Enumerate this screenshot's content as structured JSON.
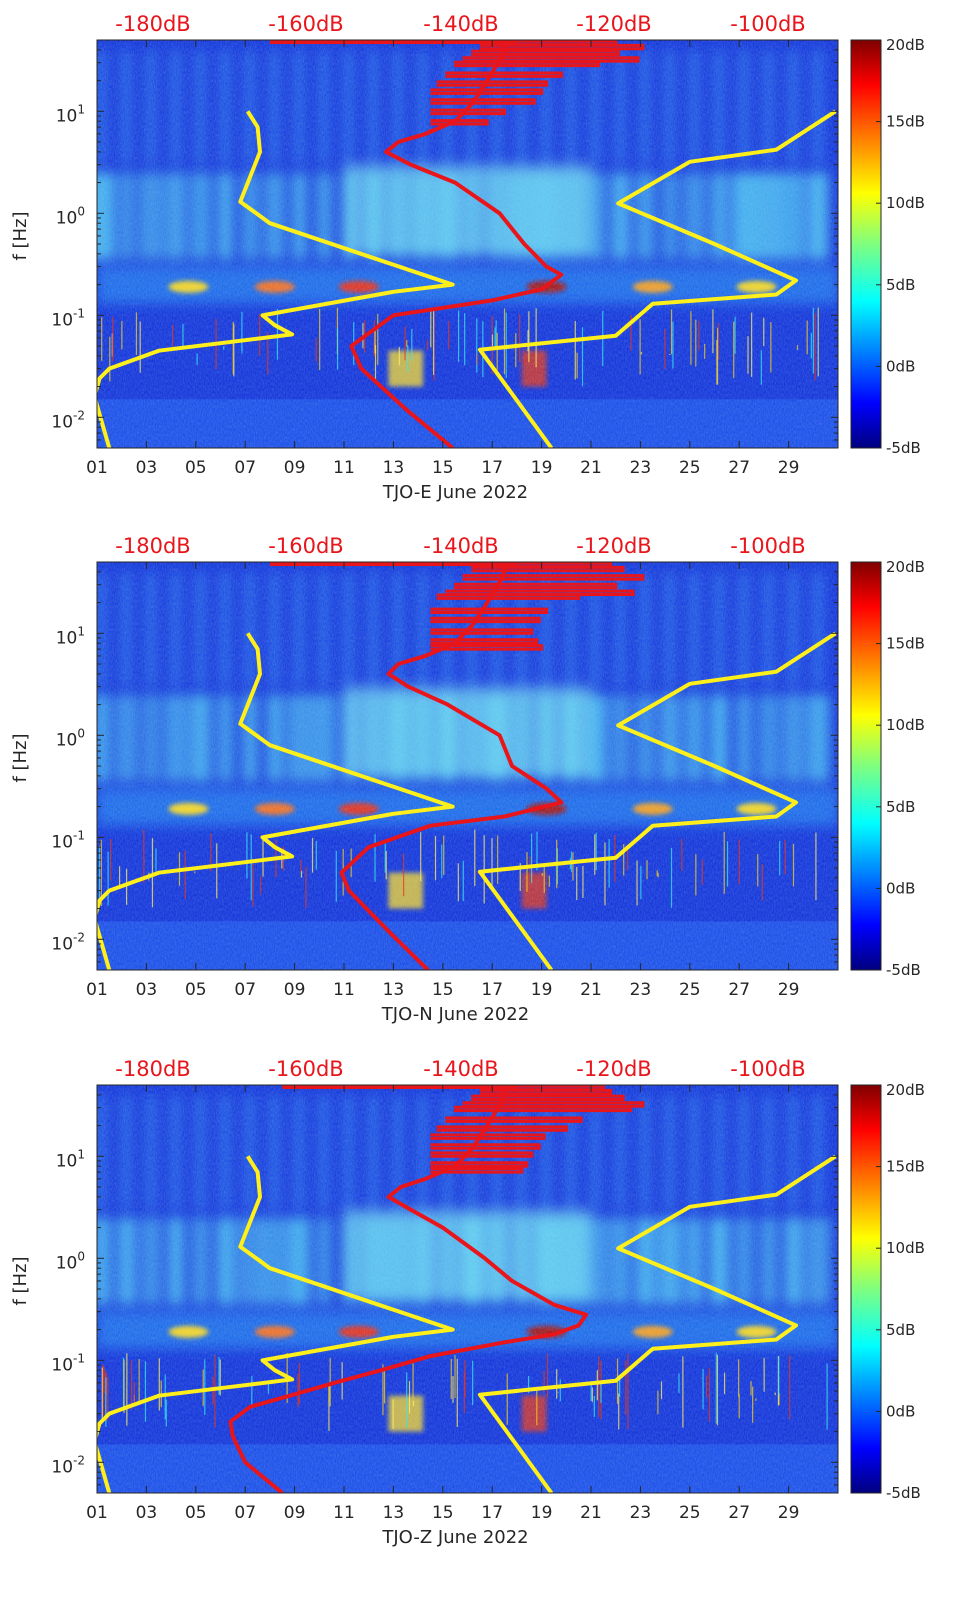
{
  "chart_data": [
    {
      "type": "heatmap",
      "xlabel": "TJO-E June 2022",
      "ylabel": "f [Hz]",
      "x_tick_labels": [
        "01",
        "03",
        "05",
        "07",
        "09",
        "11",
        "13",
        "15",
        "17",
        "19",
        "21",
        "23",
        "25",
        "27",
        "29"
      ],
      "x_ticks_day": [
        1,
        3,
        5,
        7,
        9,
        11,
        13,
        15,
        17,
        19,
        21,
        23,
        25,
        27,
        29
      ],
      "xlim_day": [
        1,
        31
      ],
      "y_scale": "log",
      "ylim_hz": [
        0.005,
        50
      ],
      "y_ticks_hz": [
        0.01,
        0.1,
        1,
        10
      ],
      "y_tick_base": "10",
      "y_tick_exps": [
        "-2",
        "-1",
        "0",
        "1"
      ],
      "colorbar": {
        "colormap": "jet",
        "range_db": [
          -5,
          20
        ],
        "tick_labels": [
          "20dB",
          "15dB",
          "10dB",
          "5dB",
          "0dB",
          "-5dB"
        ],
        "tick_values": [
          20,
          15,
          10,
          5,
          0,
          -5
        ]
      },
      "top_axis": {
        "tick_labels": [
          "-180dB",
          "-160dB",
          "-140dB",
          "-120dB",
          "-100dB"
        ],
        "tick_values_db": [
          -180,
          -160,
          -140,
          -120,
          -100
        ],
        "color": "#e8151b"
      },
      "series": [
        {
          "color": "#ffef1a",
          "curves": [
            {
              "points_day_hz": [
                [
                  7.1,
                  10
                ],
                [
                  7.5,
                  7
                ],
                [
                  7.6,
                  4
                ],
                [
                  6.8,
                  1.3
                ],
                [
                  8,
                  0.8
                ],
                [
                  15.4,
                  0.2
                ],
                [
                  13,
                  0.17
                ],
                [
                  7.7,
                  0.1
                ],
                [
                  8.2,
                  0.08
                ],
                [
                  8.9,
                  0.065
                ],
                [
                  3.5,
                  0.045
                ],
                [
                  1.5,
                  0.03
                ],
                [
                  1.1,
                  0.024
                ],
                [
                  0.9,
                  0.016
                ],
                [
                  1.5,
                  0.005
                ]
              ]
            },
            {
              "points_day_hz": [
                [
                  19.4,
                  0.005
                ],
                [
                  16.5,
                  0.046
                ],
                [
                  22,
                  0.063
                ],
                [
                  23.5,
                  0.13
                ],
                [
                  28.5,
                  0.16
                ],
                [
                  29.3,
                  0.22
                ],
                [
                  26,
                  0.5
                ],
                [
                  22.1,
                  1.25
                ],
                [
                  25,
                  3.2
                ],
                [
                  28.5,
                  4.2
                ],
                [
                  30.9,
                  10
                ]
              ]
            }
          ]
        },
        {
          "color": "#e8151b",
          "points_day_hz": [
            [
              15.4,
              0.005
            ],
            [
              13.5,
              0.012
            ],
            [
              11.7,
              0.03
            ],
            [
              11.3,
              0.05
            ],
            [
              13,
              0.1
            ],
            [
              17,
              0.14
            ],
            [
              19,
              0.18
            ],
            [
              19.8,
              0.25
            ],
            [
              19.2,
              0.3
            ],
            [
              18.3,
              0.5
            ],
            [
              17.3,
              1
            ],
            [
              15.5,
              2
            ],
            [
              13.7,
              3
            ],
            [
              12.7,
              4
            ],
            [
              13.2,
              5
            ],
            [
              14.3,
              6
            ],
            [
              15.5,
              8
            ],
            [
              16.2,
              12
            ],
            [
              16.8,
              20
            ],
            [
              17.4,
              35
            ],
            [
              17.6,
              50
            ]
          ],
          "spikes_day_hz": [
            [
              14.5,
              6.2
            ],
            [
              16.8,
              7.5
            ],
            [
              17.5,
              9.5
            ],
            [
              18.7,
              12
            ],
            [
              19,
              15
            ],
            [
              19.2,
              18
            ],
            [
              19.8,
              22
            ],
            [
              21.3,
              28
            ],
            [
              22.9,
              31
            ],
            [
              22.1,
              36
            ],
            [
              23.1,
              41
            ],
            [
              22,
              45
            ]
          ],
          "top_trace_day": [
            8,
            18
          ]
        }
      ]
    },
    {
      "type": "heatmap",
      "xlabel": "TJO-N June 2022",
      "ylabel": "f [Hz]",
      "x_tick_labels": [
        "01",
        "03",
        "05",
        "07",
        "09",
        "11",
        "13",
        "15",
        "17",
        "19",
        "21",
        "23",
        "25",
        "27",
        "29"
      ],
      "x_ticks_day": [
        1,
        3,
        5,
        7,
        9,
        11,
        13,
        15,
        17,
        19,
        21,
        23,
        25,
        27,
        29
      ],
      "xlim_day": [
        1,
        31
      ],
      "y_scale": "log",
      "ylim_hz": [
        0.005,
        50
      ],
      "y_ticks_hz": [
        0.01,
        0.1,
        1,
        10
      ],
      "y_tick_base": "10",
      "y_tick_exps": [
        "-2",
        "-1",
        "0",
        "1"
      ],
      "colorbar": {
        "colormap": "jet",
        "range_db": [
          -5,
          20
        ],
        "tick_labels": [
          "20dB",
          "15dB",
          "10dB",
          "5dB",
          "0dB",
          "-5dB"
        ],
        "tick_values": [
          20,
          15,
          10,
          5,
          0,
          -5
        ]
      },
      "top_axis": {
        "tick_labels": [
          "-180dB",
          "-160dB",
          "-140dB",
          "-120dB",
          "-100dB"
        ],
        "tick_values_db": [
          -180,
          -160,
          -140,
          -120,
          -100
        ],
        "color": "#e8151b"
      },
      "series": [
        {
          "color": "#ffef1a",
          "curves": [
            {
              "points_day_hz": [
                [
                  7.1,
                  10
                ],
                [
                  7.5,
                  7
                ],
                [
                  7.6,
                  4
                ],
                [
                  6.8,
                  1.3
                ],
                [
                  8,
                  0.8
                ],
                [
                  15.4,
                  0.2
                ],
                [
                  13,
                  0.17
                ],
                [
                  7.7,
                  0.1
                ],
                [
                  8.2,
                  0.08
                ],
                [
                  8.9,
                  0.065
                ],
                [
                  3.5,
                  0.045
                ],
                [
                  1.5,
                  0.03
                ],
                [
                  1.1,
                  0.024
                ],
                [
                  0.9,
                  0.016
                ],
                [
                  1.5,
                  0.005
                ]
              ]
            },
            {
              "points_day_hz": [
                [
                  19.4,
                  0.005
                ],
                [
                  16.5,
                  0.046
                ],
                [
                  22,
                  0.063
                ],
                [
                  23.5,
                  0.13
                ],
                [
                  28.5,
                  0.16
                ],
                [
                  29.3,
                  0.22
                ],
                [
                  26,
                  0.5
                ],
                [
                  22.1,
                  1.25
                ],
                [
                  25,
                  3.2
                ],
                [
                  28.5,
                  4.2
                ],
                [
                  30.9,
                  10
                ]
              ]
            }
          ]
        },
        {
          "color": "#e8151b",
          "points_day_hz": [
            [
              14.4,
              0.005
            ],
            [
              12.8,
              0.012
            ],
            [
              11.2,
              0.03
            ],
            [
              10.9,
              0.045
            ],
            [
              12,
              0.08
            ],
            [
              14.5,
              0.13
            ],
            [
              17.5,
              0.16
            ],
            [
              19.8,
              0.22
            ],
            [
              19.2,
              0.3
            ],
            [
              17.8,
              0.5
            ],
            [
              17.3,
              1
            ],
            [
              15.2,
              2
            ],
            [
              13.6,
              3
            ],
            [
              12.8,
              4
            ],
            [
              13.2,
              5
            ],
            [
              14.3,
              6
            ],
            [
              15.5,
              8
            ],
            [
              16.2,
              12
            ],
            [
              16.8,
              20
            ],
            [
              17.4,
              35
            ],
            [
              17.6,
              50
            ]
          ],
          "spikes_day_hz": [
            [
              19,
              7
            ],
            [
              18.8,
              8
            ],
            [
              18.6,
              10
            ],
            [
              18.9,
              13
            ],
            [
              19.2,
              16
            ],
            [
              20.5,
              22
            ],
            [
              22.7,
              24
            ],
            [
              22,
              28
            ],
            [
              23.1,
              34
            ],
            [
              22.3,
              41
            ],
            [
              21.8,
              45
            ]
          ],
          "top_trace_day": [
            8,
            18
          ]
        }
      ]
    },
    {
      "type": "heatmap",
      "xlabel": "TJO-Z June 2022",
      "ylabel": "f [Hz]",
      "x_tick_labels": [
        "01",
        "03",
        "05",
        "07",
        "09",
        "11",
        "13",
        "15",
        "17",
        "19",
        "21",
        "23",
        "25",
        "27",
        "29"
      ],
      "x_ticks_day": [
        1,
        3,
        5,
        7,
        9,
        11,
        13,
        15,
        17,
        19,
        21,
        23,
        25,
        27,
        29
      ],
      "xlim_day": [
        1,
        31
      ],
      "y_scale": "log",
      "ylim_hz": [
        0.005,
        50
      ],
      "y_ticks_hz": [
        0.01,
        0.1,
        1,
        10
      ],
      "y_tick_base": "10",
      "y_tick_exps": [
        "-2",
        "-1",
        "0",
        "1"
      ],
      "colorbar": {
        "colormap": "jet",
        "range_db": [
          -5,
          20
        ],
        "tick_labels": [
          "20dB",
          "15dB",
          "10dB",
          "5dB",
          "0dB",
          "-5dB"
        ],
        "tick_values": [
          20,
          15,
          10,
          5,
          0,
          -5
        ]
      },
      "top_axis": {
        "tick_labels": [
          "-180dB",
          "-160dB",
          "-140dB",
          "-120dB",
          "-100dB"
        ],
        "tick_values_db": [
          -180,
          -160,
          -140,
          -120,
          -100
        ],
        "color": "#e8151b"
      },
      "series": [
        {
          "color": "#ffef1a",
          "curves": [
            {
              "points_day_hz": [
                [
                  7.1,
                  10
                ],
                [
                  7.5,
                  7
                ],
                [
                  7.6,
                  4
                ],
                [
                  6.8,
                  1.3
                ],
                [
                  8,
                  0.8
                ],
                [
                  15.4,
                  0.2
                ],
                [
                  13,
                  0.17
                ],
                [
                  7.7,
                  0.1
                ],
                [
                  8.2,
                  0.08
                ],
                [
                  8.9,
                  0.065
                ],
                [
                  3.5,
                  0.045
                ],
                [
                  1.5,
                  0.03
                ],
                [
                  1.1,
                  0.024
                ],
                [
                  0.9,
                  0.016
                ],
                [
                  1.5,
                  0.005
                ]
              ]
            },
            {
              "points_day_hz": [
                [
                  19.4,
                  0.005
                ],
                [
                  16.5,
                  0.046
                ],
                [
                  22,
                  0.063
                ],
                [
                  23.5,
                  0.13
                ],
                [
                  28.5,
                  0.16
                ],
                [
                  29.3,
                  0.22
                ],
                [
                  26,
                  0.5
                ],
                [
                  22.1,
                  1.25
                ],
                [
                  25,
                  3.2
                ],
                [
                  28.5,
                  4.2
                ],
                [
                  30.9,
                  10
                ]
              ]
            }
          ]
        },
        {
          "color": "#e8151b",
          "points_day_hz": [
            [
              8.5,
              0.005
            ],
            [
              7,
              0.01
            ],
            [
              6.5,
              0.018
            ],
            [
              6.4,
              0.025
            ],
            [
              7.2,
              0.035
            ],
            [
              8.8,
              0.045
            ],
            [
              10.6,
              0.06
            ],
            [
              12.5,
              0.08
            ],
            [
              14.5,
              0.11
            ],
            [
              17.5,
              0.15
            ],
            [
              19.5,
              0.18
            ],
            [
              20.5,
              0.22
            ],
            [
              20.8,
              0.28
            ],
            [
              19.5,
              0.35
            ],
            [
              17.8,
              0.6
            ],
            [
              16.7,
              1
            ],
            [
              15,
              2
            ],
            [
              13.7,
              3
            ],
            [
              12.8,
              4
            ],
            [
              13.3,
              5
            ],
            [
              14.3,
              6
            ],
            [
              15.5,
              8
            ],
            [
              16.2,
              12
            ],
            [
              16.8,
              20
            ],
            [
              17.4,
              35
            ],
            [
              17.6,
              50
            ]
          ],
          "spikes_day_hz": [
            [
              18.2,
              7
            ],
            [
              18.4,
              8
            ],
            [
              18.6,
              10
            ],
            [
              18.9,
              12
            ],
            [
              19.1,
              15
            ],
            [
              20,
              18
            ],
            [
              20.6,
              22
            ],
            [
              22.6,
              28
            ],
            [
              23.1,
              31
            ],
            [
              22.3,
              36
            ],
            [
              21.8,
              41
            ],
            [
              21.5,
              45
            ]
          ],
          "top_trace_day": [
            8.5,
            18
          ]
        }
      ]
    }
  ]
}
